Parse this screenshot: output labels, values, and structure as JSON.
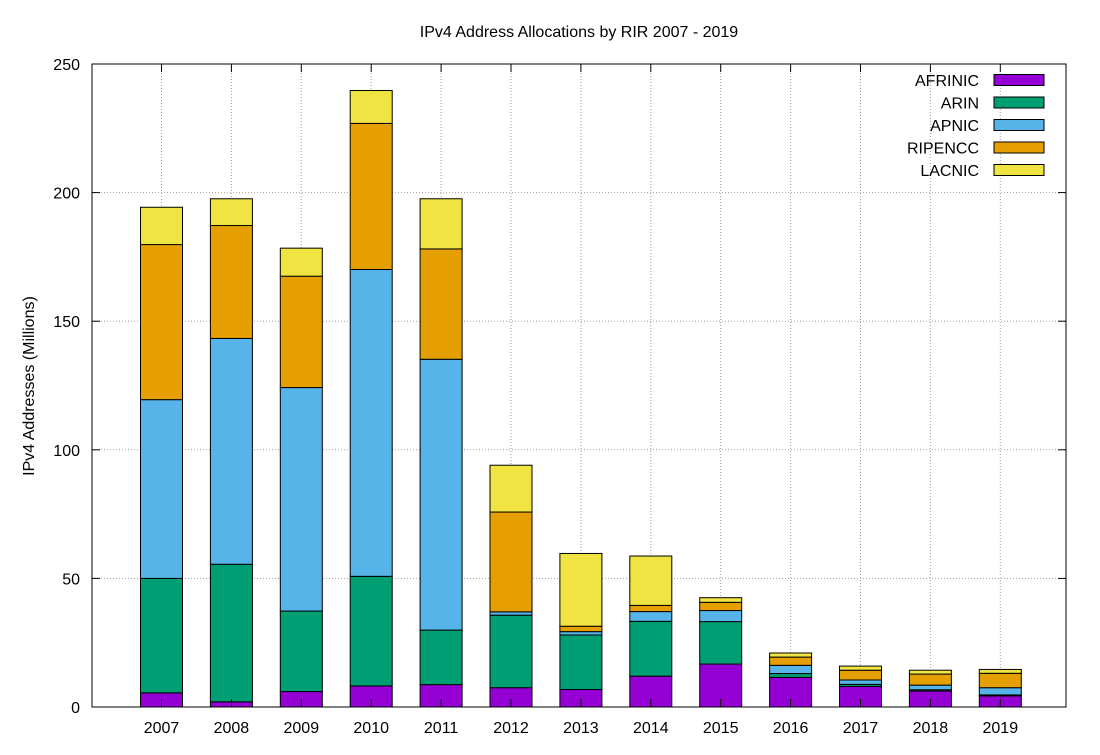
{
  "chart_data": {
    "type": "bar",
    "stacked": true,
    "title": "IPv4 Address Allocations by RIR 2007 - 2019",
    "xlabel": "",
    "ylabel": "IPv4 Addresses (Millions)",
    "ylim": [
      0,
      250
    ],
    "yticks": [
      0,
      50,
      100,
      150,
      200,
      250
    ],
    "grid": true,
    "legend_position": "top-right",
    "categories": [
      "2007",
      "2008",
      "2009",
      "2010",
      "2011",
      "2012",
      "2013",
      "2014",
      "2015",
      "2016",
      "2017",
      "2018",
      "2019"
    ],
    "series": [
      {
        "name": "AFRINIC",
        "color": "#9400d3",
        "values": [
          5.5,
          2,
          6,
          8.2,
          8.7,
          7.5,
          6.8,
          12,
          16.7,
          11.5,
          8,
          6.2,
          4.3
        ]
      },
      {
        "name": "ARIN",
        "color": "#009e73",
        "values": [
          44.5,
          53.5,
          31.3,
          42.6,
          21.2,
          28.2,
          21.2,
          21.3,
          16.5,
          1.5,
          0.8,
          0.5,
          0.4
        ]
      },
      {
        "name": "APNIC",
        "color": "#56b4e9",
        "values": [
          69.5,
          87.8,
          86.9,
          119.3,
          105.3,
          1.3,
          1.3,
          3.8,
          4.3,
          3.2,
          1.7,
          1.8,
          2.8
        ]
      },
      {
        "name": "RIPENCC",
        "color": "#e69f00",
        "values": [
          60.3,
          43.9,
          43.3,
          56.8,
          42.9,
          38.8,
          2.1,
          2.4,
          3.2,
          3.2,
          3.8,
          4.3,
          5.6
        ]
      },
      {
        "name": "LACNIC",
        "color": "#f0e442",
        "values": [
          14.5,
          10.4,
          10.9,
          12.8,
          19.5,
          18.2,
          28.3,
          19.2,
          1.8,
          1.6,
          1.6,
          1.5,
          1.5
        ]
      }
    ]
  }
}
